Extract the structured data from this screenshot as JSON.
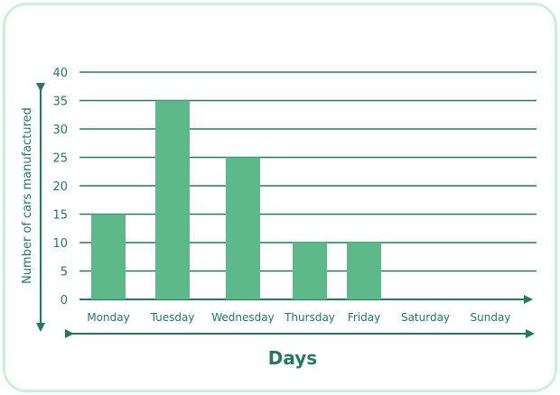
{
  "chart_data": {
    "type": "bar",
    "categories": [
      "Monday",
      "Tuesday",
      "Wednesday",
      "Thursday",
      "Friday",
      "Saturday",
      "Sunday"
    ],
    "values": [
      15,
      35,
      25,
      10,
      10,
      0,
      0
    ],
    "title": "",
    "xlabel": "Days",
    "ylabel": "Number of cars manufactured",
    "ylim": [
      0,
      40
    ],
    "yticks": [
      "0",
      "5",
      "10",
      "15",
      "20",
      "25",
      "30",
      "35",
      "40"
    ],
    "grid": true,
    "colors": {
      "bar": "#5db88a",
      "grid": "#237a5a",
      "axis": "#237a5a",
      "text": "#237a5a",
      "border": "#c9f0da"
    }
  }
}
